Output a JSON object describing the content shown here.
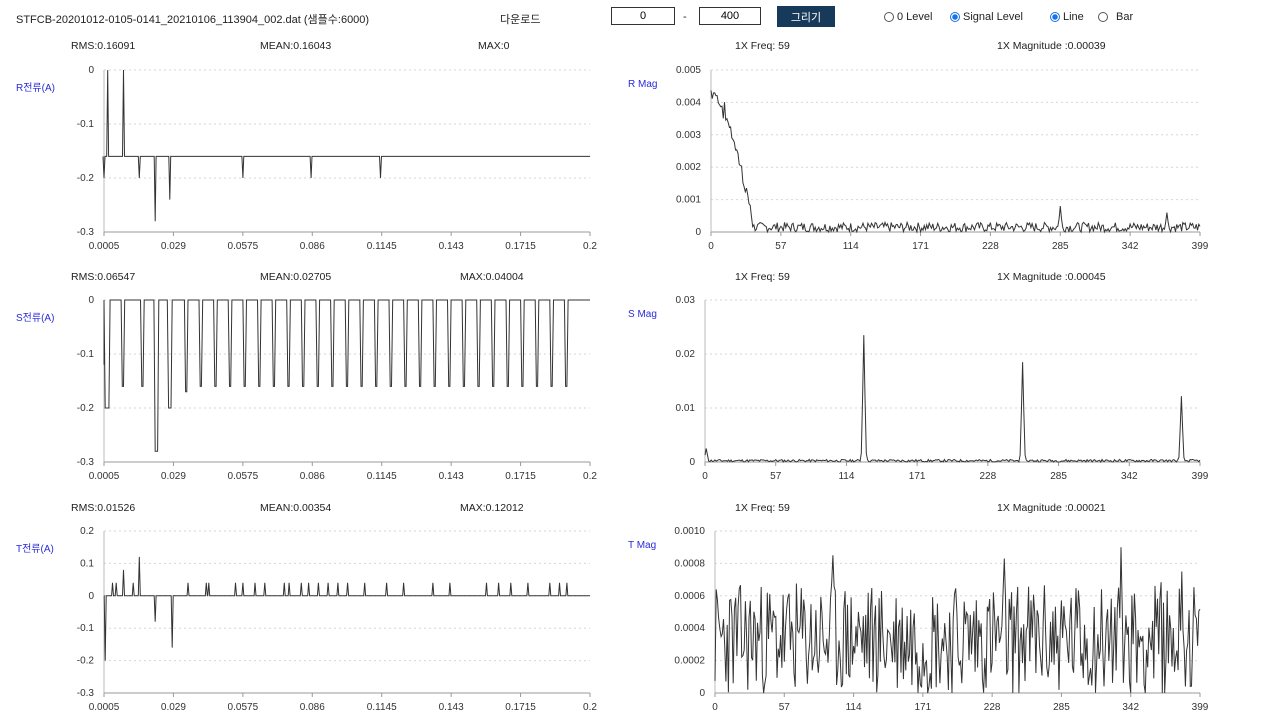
{
  "toolbar": {
    "filename": "STFCB-20201012-0105-0141_20210106_113904_002.dat (샘플수:6000)",
    "download_label": "다운로드",
    "range_start": "0",
    "range_sep": "-",
    "range_end": "400",
    "draw_label": "그리기",
    "level_options": [
      {
        "label": "0 Level",
        "selected": false
      },
      {
        "label": "Signal Level",
        "selected": true
      }
    ],
    "style_options": [
      {
        "label": "Line",
        "selected": true
      },
      {
        "label": "Bar",
        "selected": false
      }
    ]
  },
  "colors": {
    "accent": "#183a5a",
    "series": "#333333",
    "label": "#2a2adb",
    "grid": "#d6d6d6"
  },
  "panels": {
    "r_current": {
      "label": "R전류(A)",
      "stats": {
        "a": "RMS:0.16091",
        "b": "MEAN:0.16043",
        "c": "MAX:0"
      }
    },
    "s_current": {
      "label": "S전류(A)",
      "stats": {
        "a": "RMS:0.06547",
        "b": "MEAN:0.02705",
        "c": "MAX:0.04004"
      }
    },
    "t_current": {
      "label": "T전류(A)",
      "stats": {
        "a": "RMS:0.01526",
        "b": "MEAN:0.00354",
        "c": "MAX:0.12012"
      }
    },
    "r_mag": {
      "label": "R Mag",
      "stats": {
        "a": "1X Freq: 59",
        "b": "1X Magnitude :0.00039"
      }
    },
    "s_mag": {
      "label": "S Mag",
      "stats": {
        "a": "1X Freq: 59",
        "b": "1X Magnitude :0.00045"
      }
    },
    "t_mag": {
      "label": "T Mag",
      "stats": {
        "a": "1X Freq: 59",
        "b": "1X Magnitude :0.00021"
      }
    }
  },
  "chart_data": [
    {
      "id": "r_current",
      "type": "line",
      "ylabel": "R전류(A)",
      "xlabel": "",
      "ylim": [
        -0.3,
        0
      ],
      "yticks": [
        "0",
        "-0.1",
        "-0.2",
        "-0.3"
      ],
      "ytick_values": [
        0,
        -0.1,
        -0.2,
        -0.3
      ],
      "xlim": [
        0.0005,
        0.2
      ],
      "xticks": [
        "0.0005",
        "0.029",
        "0.0575",
        "0.086",
        "0.1145",
        "0.143",
        "0.1715",
        "0.2"
      ],
      "xtick_values": [
        0.0005,
        0.029,
        0.0575,
        0.086,
        0.1145,
        0.143,
        0.1715,
        0.2
      ],
      "grid": true,
      "baseline": -0.16,
      "spikes": [
        [
          0.0005,
          -0.2
        ],
        [
          0.002,
          0.0
        ],
        [
          0.0085,
          0.0
        ],
        [
          0.015,
          -0.2
        ],
        [
          0.0215,
          -0.28
        ],
        [
          0.0275,
          -0.24
        ],
        [
          0.0575,
          -0.2
        ],
        [
          0.0855,
          -0.2
        ],
        [
          0.114,
          -0.2
        ]
      ]
    },
    {
      "id": "s_current",
      "type": "line",
      "ylabel": "S전류(A)",
      "xlabel": "",
      "ylim": [
        -0.3,
        0
      ],
      "yticks": [
        "0",
        "-0.1",
        "-0.2",
        "-0.3"
      ],
      "ytick_values": [
        0,
        -0.1,
        -0.2,
        -0.3
      ],
      "xlim": [
        0.0005,
        0.2
      ],
      "xticks": [
        "0.0005",
        "0.029",
        "0.0575",
        "0.086",
        "0.1145",
        "0.143",
        "0.1715",
        "0.2"
      ],
      "xtick_values": [
        0.0005,
        0.029,
        0.0575,
        0.086,
        0.1145,
        0.143,
        0.1715,
        0.2
      ],
      "grid": true,
      "dips": [
        [
          0.0005,
          0.003,
          -0.2
        ],
        [
          0.0075,
          0.009,
          -0.16
        ],
        [
          0.0155,
          0.017,
          -0.16
        ],
        [
          0.021,
          0.023,
          -0.28
        ],
        [
          0.0265,
          0.0285,
          -0.2
        ],
        [
          0.0335,
          0.035,
          -0.17
        ],
        [
          0.0395,
          0.041,
          -0.16
        ],
        [
          0.0455,
          0.047,
          -0.16
        ],
        [
          0.0515,
          0.053,
          -0.16
        ],
        [
          0.0575,
          0.059,
          -0.16
        ],
        [
          0.0635,
          0.065,
          -0.16
        ],
        [
          0.0695,
          0.071,
          -0.16
        ],
        [
          0.0755,
          0.077,
          -0.16
        ],
        [
          0.0815,
          0.083,
          -0.16
        ],
        [
          0.0875,
          0.089,
          -0.16
        ],
        [
          0.0935,
          0.095,
          -0.16
        ],
        [
          0.0995,
          0.101,
          -0.16
        ],
        [
          0.1055,
          0.107,
          -0.16
        ],
        [
          0.1115,
          0.113,
          -0.16
        ],
        [
          0.1175,
          0.119,
          -0.16
        ],
        [
          0.1235,
          0.125,
          -0.16
        ],
        [
          0.1295,
          0.131,
          -0.16
        ],
        [
          0.1355,
          0.137,
          -0.16
        ],
        [
          0.1415,
          0.143,
          -0.16
        ],
        [
          0.1475,
          0.149,
          -0.16
        ],
        [
          0.1535,
          0.155,
          -0.16
        ],
        [
          0.1595,
          0.161,
          -0.16
        ],
        [
          0.1655,
          0.167,
          -0.16
        ],
        [
          0.1715,
          0.173,
          -0.16
        ],
        [
          0.1775,
          0.179,
          -0.16
        ],
        [
          0.1835,
          0.185,
          -0.16
        ],
        [
          0.1895,
          0.191,
          -0.16
        ]
      ]
    },
    {
      "id": "t_current",
      "type": "line",
      "ylabel": "T전류(A)",
      "xlabel": "",
      "ylim": [
        -0.3,
        0.2
      ],
      "yticks": [
        "0.2",
        "0.1",
        "0",
        "-0.1",
        "-0.2",
        "-0.3"
      ],
      "ytick_values": [
        0.2,
        0.1,
        0,
        -0.1,
        -0.2,
        -0.3
      ],
      "xlim": [
        0.0005,
        0.2
      ],
      "xticks": [
        "0.0005",
        "0.029",
        "0.0575",
        "0.086",
        "0.1145",
        "0.143",
        "0.1715",
        "0.2"
      ],
      "xtick_values": [
        0.0005,
        0.029,
        0.0575,
        0.086,
        0.1145,
        0.143,
        0.1715,
        0.2
      ],
      "grid": true,
      "spikes": [
        [
          0.001,
          -0.2
        ],
        [
          0.004,
          0.04
        ],
        [
          0.0055,
          0.04
        ],
        [
          0.0085,
          0.08
        ],
        [
          0.0125,
          0.04
        ],
        [
          0.015,
          0.12
        ],
        [
          0.0215,
          -0.08
        ],
        [
          0.0285,
          -0.16
        ],
        [
          0.035,
          0.04
        ],
        [
          0.0425,
          0.04
        ],
        [
          0.0435,
          0.04
        ],
        [
          0.0545,
          0.04
        ],
        [
          0.0575,
          0.04
        ],
        [
          0.0625,
          0.04
        ],
        [
          0.0665,
          0.04
        ],
        [
          0.0745,
          0.04
        ],
        [
          0.0765,
          0.04
        ],
        [
          0.0815,
          0.04
        ],
        [
          0.0845,
          0.04
        ],
        [
          0.0885,
          0.04
        ],
        [
          0.0925,
          0.04
        ],
        [
          0.0965,
          0.04
        ],
        [
          0.1005,
          0.04
        ],
        [
          0.1075,
          0.04
        ],
        [
          0.1165,
          0.04
        ],
        [
          0.1235,
          0.04
        ],
        [
          0.1355,
          0.04
        ],
        [
          0.1425,
          0.04
        ],
        [
          0.1575,
          0.04
        ],
        [
          0.1625,
          0.04
        ],
        [
          0.1675,
          0.04
        ],
        [
          0.1745,
          0.04
        ],
        [
          0.1835,
          0.04
        ],
        [
          0.1875,
          0.04
        ],
        [
          0.1905,
          0.04
        ]
      ]
    },
    {
      "id": "r_mag",
      "type": "line",
      "ylabel": "R Mag",
      "xlabel": "",
      "ylim": [
        0,
        0.005
      ],
      "yticks": [
        "0.005",
        "0.004",
        "0.003",
        "0.002",
        "0.001",
        "0"
      ],
      "ytick_values": [
        0.005,
        0.004,
        0.003,
        0.002,
        0.001,
        0
      ],
      "xlim": [
        0,
        399
      ],
      "xticks": [
        "0",
        "57",
        "114",
        "171",
        "228",
        "285",
        "342",
        "399"
      ],
      "xtick_values": [
        0,
        57,
        114,
        171,
        228,
        285,
        342,
        399
      ],
      "grid": true,
      "shape": "decay",
      "start": 0.0042,
      "decay_end": 35,
      "noise_level": 0.0003,
      "seed": 7,
      "peaks": [
        [
          285,
          0.0008
        ],
        [
          372,
          0.0006
        ]
      ]
    },
    {
      "id": "s_mag",
      "type": "line",
      "ylabel": "S Mag",
      "xlabel": "",
      "ylim": [
        0,
        0.03
      ],
      "yticks": [
        "0.03",
        "0.02",
        "0.01",
        "0"
      ],
      "ytick_values": [
        0.03,
        0.02,
        0.01,
        0
      ],
      "xlim": [
        0,
        399
      ],
      "xticks": [
        "0",
        "57",
        "114",
        "171",
        "228",
        "285",
        "342",
        "399"
      ],
      "xtick_values": [
        0,
        57,
        114,
        171,
        228,
        285,
        342,
        399
      ],
      "grid": true,
      "shape": "peaks",
      "noise_level": 0.0008,
      "seed": 11,
      "peaks": [
        [
          128,
          0.0235
        ],
        [
          256,
          0.0185
        ],
        [
          384,
          0.0122
        ],
        [
          1,
          0.0025
        ]
      ]
    },
    {
      "id": "t_mag",
      "type": "line",
      "ylabel": "T Mag",
      "xlabel": "",
      "ylim": [
        0,
        0.001
      ],
      "yticks": [
        "0.0010",
        "0.0008",
        "0.0006",
        "0.0004",
        "0.0002",
        "0"
      ],
      "ytick_values": [
        0.001,
        0.0008,
        0.0006,
        0.0004,
        0.0002,
        0
      ],
      "xlim": [
        0,
        399
      ],
      "xticks": [
        "0",
        "57",
        "114",
        "171",
        "228",
        "285",
        "342",
        "399"
      ],
      "xtick_values": [
        0,
        57,
        114,
        171,
        228,
        285,
        342,
        399
      ],
      "grid": true,
      "shape": "noise",
      "base": 0.0003,
      "noise_level": 0.0005,
      "seed": 23,
      "peaks": [
        [
          97,
          0.00085
        ],
        [
          238,
          0.00083
        ],
        [
          334,
          0.0009
        ],
        [
          384,
          0.00075
        ]
      ]
    }
  ]
}
